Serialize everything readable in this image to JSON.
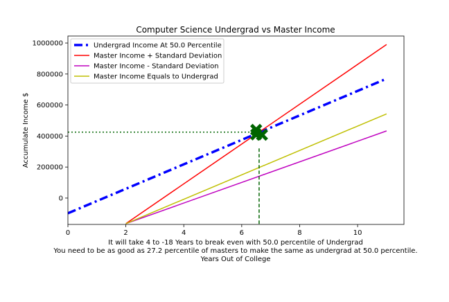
{
  "chart_data": {
    "type": "line",
    "title": "Computer Science Undergrad vs Master Income",
    "xlabel_lines": [
      "It will take 4 to -18 Years to break even with 50.0 percentile of Undergrad",
      "You need to be as good as 27.2 percentile of masters to make the same as undergrad at 50.0 percentile.",
      "Years Out of College"
    ],
    "ylabel": "Accumulate Income $",
    "xlim": [
      0,
      11.6
    ],
    "ylim": [
      -170000,
      1045000
    ],
    "x_ticks": [
      0,
      2,
      4,
      6,
      8,
      10
    ],
    "y_ticks": [
      0,
      200000,
      400000,
      600000,
      800000,
      1000000
    ],
    "y_tick_labels": [
      "0",
      "200000",
      "400000",
      "600000",
      "800000",
      "1000000"
    ],
    "legend_position": "upper-left",
    "series": [
      {
        "name": "Undergrad Income At 50.0 Percentile",
        "color": "#0000ff",
        "style": "dashdot",
        "x": [
          0,
          11
        ],
        "values": [
          -98000,
          770000
        ]
      },
      {
        "name": "Master Income + Standard Deviation",
        "color": "#ff0000",
        "style": "solid",
        "x": [
          2,
          11
        ],
        "values": [
          -165000,
          990000
        ]
      },
      {
        "name": "Master Income - Standard Deviation",
        "color": "#bf00bf",
        "style": "solid",
        "x": [
          2,
          11
        ],
        "values": [
          -165000,
          433000
        ]
      },
      {
        "name": "Master Income Equals to Undergrad",
        "color": "#bfbf00",
        "style": "solid",
        "x": [
          2,
          11
        ],
        "values": [
          -165000,
          543000
        ]
      }
    ],
    "breakeven": {
      "markers": [
        {
          "x": 6.5,
          "y": 440000
        },
        {
          "x": 6.5,
          "y": 410000
        },
        {
          "x": 6.7,
          "y": 408000
        }
      ],
      "marker_color": "#006400",
      "hline_y": 425000,
      "vline_x": 6.6,
      "vline_top_y": 320000
    }
  }
}
